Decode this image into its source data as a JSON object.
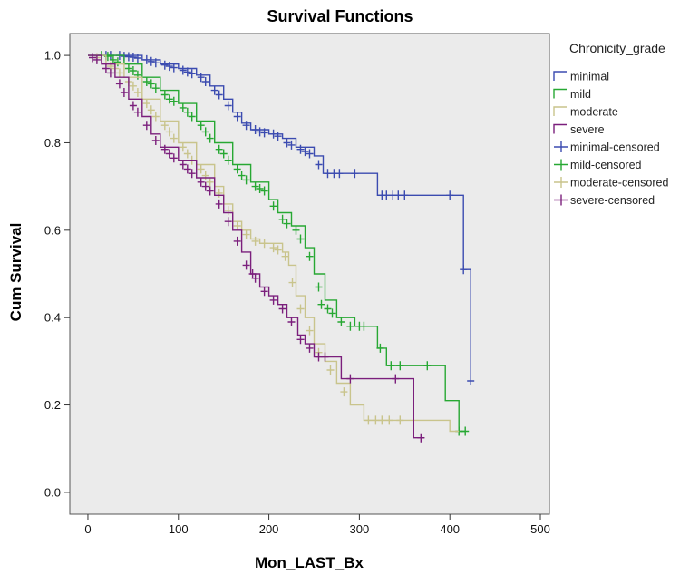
{
  "chart_data": {
    "type": "line",
    "title": "Survival Functions",
    "xlabel": "Mon_LAST_Bx",
    "ylabel": "Cum Survival",
    "xlim": [
      -20,
      510
    ],
    "ylim": [
      -0.05,
      1.05
    ],
    "x_ticks": [
      0,
      100,
      200,
      300,
      400,
      500
    ],
    "y_ticks": [
      0.0,
      0.2,
      0.4,
      0.6,
      0.8,
      1.0
    ],
    "x_tick_labels": [
      "0",
      "100",
      "200",
      "300",
      "400",
      "500"
    ],
    "y_tick_labels": [
      "0.0",
      "0.2",
      "0.4",
      "0.6",
      "0.8",
      "1.0"
    ],
    "grid": false,
    "background": "#ebebeb",
    "legend": {
      "title": "Chronicity_grade",
      "position": "right",
      "entries": [
        {
          "label": "minimal",
          "kind": "step",
          "color": "#3b4bb0"
        },
        {
          "label": "mild",
          "kind": "step",
          "color": "#27a833"
        },
        {
          "label": "moderate",
          "kind": "step",
          "color": "#c9c48c"
        },
        {
          "label": "severe",
          "kind": "step",
          "color": "#7b1f7c"
        },
        {
          "label": "minimal-censored",
          "kind": "censor",
          "color": "#3b4bb0"
        },
        {
          "label": "mild-censored",
          "kind": "censor",
          "color": "#27a833"
        },
        {
          "label": "moderate-censored",
          "kind": "censor",
          "color": "#c9c48c"
        },
        {
          "label": "severe-censored",
          "kind": "censor",
          "color": "#7b1f7c"
        }
      ]
    },
    "series": [
      {
        "name": "minimal",
        "color": "#3b4bb0",
        "points": [
          [
            0,
            1.0
          ],
          [
            30,
            1.0
          ],
          [
            60,
            0.99
          ],
          [
            80,
            0.98
          ],
          [
            100,
            0.97
          ],
          [
            120,
            0.955
          ],
          [
            135,
            0.93
          ],
          [
            150,
            0.9
          ],
          [
            160,
            0.87
          ],
          [
            170,
            0.845
          ],
          [
            180,
            0.83
          ],
          [
            200,
            0.82
          ],
          [
            215,
            0.81
          ],
          [
            230,
            0.79
          ],
          [
            250,
            0.77
          ],
          [
            260,
            0.73
          ],
          [
            285,
            0.73
          ],
          [
            310,
            0.73
          ],
          [
            320,
            0.68
          ],
          [
            360,
            0.68
          ],
          [
            405,
            0.68
          ],
          [
            415,
            0.51
          ],
          [
            422,
            0.51
          ],
          [
            423,
            0.255
          ]
        ],
        "censored": [
          [
            20,
            1.0
          ],
          [
            25,
            1.0
          ],
          [
            35,
            1.0
          ],
          [
            40,
            0.998
          ],
          [
            45,
            0.997
          ],
          [
            50,
            0.996
          ],
          [
            55,
            0.994
          ],
          [
            65,
            0.99
          ],
          [
            70,
            0.986
          ],
          [
            75,
            0.983
          ],
          [
            85,
            0.978
          ],
          [
            90,
            0.975
          ],
          [
            95,
            0.972
          ],
          [
            105,
            0.966
          ],
          [
            110,
            0.962
          ],
          [
            115,
            0.958
          ],
          [
            125,
            0.95
          ],
          [
            130,
            0.94
          ],
          [
            140,
            0.92
          ],
          [
            145,
            0.91
          ],
          [
            155,
            0.885
          ],
          [
            165,
            0.86
          ],
          [
            175,
            0.84
          ],
          [
            185,
            0.83
          ],
          [
            190,
            0.825
          ],
          [
            195,
            0.823
          ],
          [
            205,
            0.82
          ],
          [
            210,
            0.815
          ],
          [
            220,
            0.8
          ],
          [
            225,
            0.795
          ],
          [
            235,
            0.785
          ],
          [
            240,
            0.78
          ],
          [
            245,
            0.775
          ],
          [
            255,
            0.75
          ],
          [
            265,
            0.73
          ],
          [
            272,
            0.73
          ],
          [
            278,
            0.73
          ],
          [
            295,
            0.73
          ],
          [
            325,
            0.68
          ],
          [
            330,
            0.68
          ],
          [
            337,
            0.68
          ],
          [
            343,
            0.68
          ],
          [
            350,
            0.68
          ],
          [
            400,
            0.68
          ],
          [
            415,
            0.51
          ],
          [
            423,
            0.255
          ]
        ]
      },
      {
        "name": "mild",
        "color": "#27a833",
        "points": [
          [
            0,
            1.0
          ],
          [
            20,
            1.0
          ],
          [
            40,
            0.98
          ],
          [
            60,
            0.95
          ],
          [
            80,
            0.92
          ],
          [
            100,
            0.89
          ],
          [
            120,
            0.85
          ],
          [
            140,
            0.8
          ],
          [
            160,
            0.75
          ],
          [
            180,
            0.71
          ],
          [
            200,
            0.67
          ],
          [
            210,
            0.64
          ],
          [
            225,
            0.61
          ],
          [
            240,
            0.56
          ],
          [
            250,
            0.5
          ],
          [
            262,
            0.44
          ],
          [
            275,
            0.4
          ],
          [
            295,
            0.38
          ],
          [
            310,
            0.38
          ],
          [
            320,
            0.33
          ],
          [
            330,
            0.29
          ],
          [
            340,
            0.29
          ],
          [
            380,
            0.29
          ],
          [
            395,
            0.21
          ],
          [
            410,
            0.14
          ],
          [
            417,
            0.14
          ]
        ],
        "censored": [
          [
            15,
            1.0
          ],
          [
            22,
            0.998
          ],
          [
            28,
            0.99
          ],
          [
            33,
            0.985
          ],
          [
            45,
            0.97
          ],
          [
            50,
            0.965
          ],
          [
            55,
            0.955
          ],
          [
            65,
            0.94
          ],
          [
            70,
            0.935
          ],
          [
            75,
            0.925
          ],
          [
            85,
            0.91
          ],
          [
            90,
            0.9
          ],
          [
            95,
            0.895
          ],
          [
            105,
            0.88
          ],
          [
            110,
            0.87
          ],
          [
            115,
            0.86
          ],
          [
            125,
            0.84
          ],
          [
            130,
            0.825
          ],
          [
            135,
            0.81
          ],
          [
            145,
            0.785
          ],
          [
            150,
            0.775
          ],
          [
            155,
            0.76
          ],
          [
            165,
            0.74
          ],
          [
            170,
            0.725
          ],
          [
            175,
            0.715
          ],
          [
            185,
            0.7
          ],
          [
            190,
            0.695
          ],
          [
            195,
            0.69
          ],
          [
            205,
            0.655
          ],
          [
            215,
            0.625
          ],
          [
            220,
            0.615
          ],
          [
            230,
            0.6
          ],
          [
            235,
            0.58
          ],
          [
            245,
            0.54
          ],
          [
            255,
            0.47
          ],
          [
            258,
            0.43
          ],
          [
            265,
            0.42
          ],
          [
            270,
            0.41
          ],
          [
            280,
            0.39
          ],
          [
            290,
            0.38
          ],
          [
            300,
            0.38
          ],
          [
            305,
            0.38
          ],
          [
            323,
            0.33
          ],
          [
            335,
            0.29
          ],
          [
            345,
            0.29
          ],
          [
            375,
            0.29
          ],
          [
            410,
            0.14
          ],
          [
            417,
            0.14
          ]
        ]
      },
      {
        "name": "moderate",
        "color": "#c9c48c",
        "points": [
          [
            0,
            1.0
          ],
          [
            20,
            0.98
          ],
          [
            40,
            0.95
          ],
          [
            60,
            0.9
          ],
          [
            80,
            0.85
          ],
          [
            100,
            0.8
          ],
          [
            120,
            0.75
          ],
          [
            140,
            0.7
          ],
          [
            150,
            0.66
          ],
          [
            160,
            0.62
          ],
          [
            170,
            0.6
          ],
          [
            180,
            0.58
          ],
          [
            190,
            0.57
          ],
          [
            200,
            0.57
          ],
          [
            215,
            0.55
          ],
          [
            222,
            0.52
          ],
          [
            230,
            0.45
          ],
          [
            240,
            0.4
          ],
          [
            250,
            0.34
          ],
          [
            262,
            0.3
          ],
          [
            275,
            0.25
          ],
          [
            290,
            0.2
          ],
          [
            305,
            0.165
          ],
          [
            340,
            0.165
          ],
          [
            395,
            0.165
          ],
          [
            400,
            0.14
          ],
          [
            410,
            0.14
          ]
        ],
        "censored": [
          [
            10,
            0.995
          ],
          [
            25,
            0.975
          ],
          [
            30,
            0.97
          ],
          [
            35,
            0.96
          ],
          [
            45,
            0.94
          ],
          [
            50,
            0.93
          ],
          [
            55,
            0.915
          ],
          [
            65,
            0.89
          ],
          [
            70,
            0.875
          ],
          [
            75,
            0.86
          ],
          [
            85,
            0.84
          ],
          [
            90,
            0.825
          ],
          [
            95,
            0.81
          ],
          [
            105,
            0.79
          ],
          [
            110,
            0.775
          ],
          [
            115,
            0.76
          ],
          [
            125,
            0.74
          ],
          [
            130,
            0.725
          ],
          [
            135,
            0.71
          ],
          [
            145,
            0.685
          ],
          [
            155,
            0.645
          ],
          [
            165,
            0.61
          ],
          [
            175,
            0.59
          ],
          [
            185,
            0.575
          ],
          [
            195,
            0.57
          ],
          [
            205,
            0.56
          ],
          [
            210,
            0.555
          ],
          [
            218,
            0.54
          ],
          [
            226,
            0.48
          ],
          [
            235,
            0.42
          ],
          [
            245,
            0.37
          ],
          [
            255,
            0.32
          ],
          [
            268,
            0.28
          ],
          [
            283,
            0.23
          ],
          [
            310,
            0.165
          ],
          [
            318,
            0.165
          ],
          [
            325,
            0.165
          ],
          [
            333,
            0.165
          ],
          [
            345,
            0.165
          ]
        ]
      },
      {
        "name": "severe",
        "color": "#7b1f7c",
        "points": [
          [
            0,
            1.0
          ],
          [
            15,
            0.98
          ],
          [
            30,
            0.95
          ],
          [
            45,
            0.9
          ],
          [
            60,
            0.86
          ],
          [
            70,
            0.82
          ],
          [
            80,
            0.79
          ],
          [
            100,
            0.76
          ],
          [
            120,
            0.72
          ],
          [
            140,
            0.68
          ],
          [
            150,
            0.64
          ],
          [
            160,
            0.6
          ],
          [
            170,
            0.55
          ],
          [
            180,
            0.5
          ],
          [
            190,
            0.47
          ],
          [
            200,
            0.45
          ],
          [
            210,
            0.43
          ],
          [
            220,
            0.4
          ],
          [
            232,
            0.36
          ],
          [
            240,
            0.34
          ],
          [
            250,
            0.31
          ],
          [
            270,
            0.31
          ],
          [
            280,
            0.26
          ],
          [
            320,
            0.26
          ],
          [
            355,
            0.26
          ],
          [
            360,
            0.125
          ],
          [
            372,
            0.125
          ]
        ],
        "censored": [
          [
            5,
            0.995
          ],
          [
            10,
            0.99
          ],
          [
            20,
            0.97
          ],
          [
            25,
            0.96
          ],
          [
            35,
            0.935
          ],
          [
            40,
            0.915
          ],
          [
            50,
            0.885
          ],
          [
            55,
            0.87
          ],
          [
            65,
            0.84
          ],
          [
            75,
            0.805
          ],
          [
            85,
            0.785
          ],
          [
            90,
            0.775
          ],
          [
            95,
            0.765
          ],
          [
            105,
            0.75
          ],
          [
            110,
            0.74
          ],
          [
            115,
            0.73
          ],
          [
            125,
            0.71
          ],
          [
            130,
            0.7
          ],
          [
            135,
            0.69
          ],
          [
            145,
            0.66
          ],
          [
            155,
            0.62
          ],
          [
            165,
            0.575
          ],
          [
            175,
            0.52
          ],
          [
            182,
            0.5
          ],
          [
            185,
            0.49
          ],
          [
            195,
            0.46
          ],
          [
            205,
            0.44
          ],
          [
            215,
            0.42
          ],
          [
            225,
            0.39
          ],
          [
            235,
            0.35
          ],
          [
            245,
            0.33
          ],
          [
            255,
            0.31
          ],
          [
            262,
            0.31
          ],
          [
            290,
            0.26
          ],
          [
            340,
            0.26
          ],
          [
            368,
            0.125
          ]
        ]
      }
    ]
  }
}
